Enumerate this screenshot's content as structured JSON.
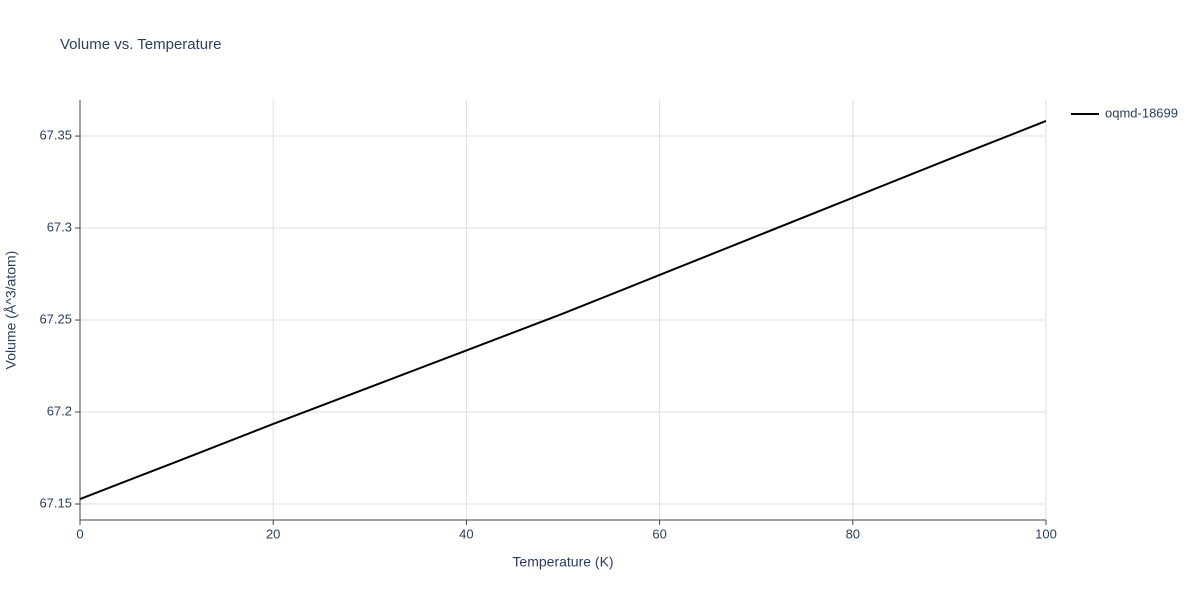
{
  "chart_data": {
    "type": "line",
    "title": "Volume vs. Temperature",
    "x_label": "Temperature (K)",
    "y_label": "Volume (Å^3/atom)",
    "x": [
      0,
      10,
      20,
      30,
      40,
      50,
      60,
      70,
      80,
      90,
      100
    ],
    "series": [
      {
        "name": "oqmd-18699",
        "color": "#000000",
        "values": [
          67.1527,
          67.173,
          67.1935,
          67.2135,
          67.2335,
          67.2535,
          67.2745,
          67.2955,
          67.3165,
          67.3375,
          67.3582
        ]
      }
    ],
    "xlim": [
      0,
      100
    ],
    "xticks": [
      0,
      20,
      40,
      60,
      80,
      100
    ],
    "ylim": [
      67.1413,
      67.3696
    ],
    "yticks": [
      67.15,
      67.2,
      67.25,
      67.3,
      67.35
    ],
    "grid": true,
    "legend": "right"
  }
}
